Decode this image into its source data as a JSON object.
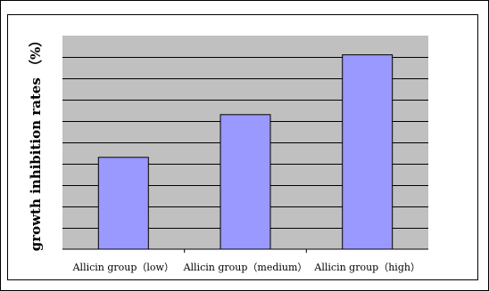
{
  "chart_data": {
    "type": "bar",
    "categories": [
      "Allicin group（low）",
      "Allicin group（medium）",
      "Allicin group（high）"
    ],
    "values": [
      43,
      63,
      91
    ],
    "ylabel": "growth inhibition rates （%）",
    "xlabel": "",
    "title": "",
    "ylim": [
      0,
      100
    ],
    "grid": "horizontal",
    "legend": "none",
    "colors": {
      "bar": "#9999ff",
      "bar_stroke": "#000000",
      "plot_background": "#c0c0c0",
      "gridline": "#000000",
      "frame": "#000000"
    }
  }
}
